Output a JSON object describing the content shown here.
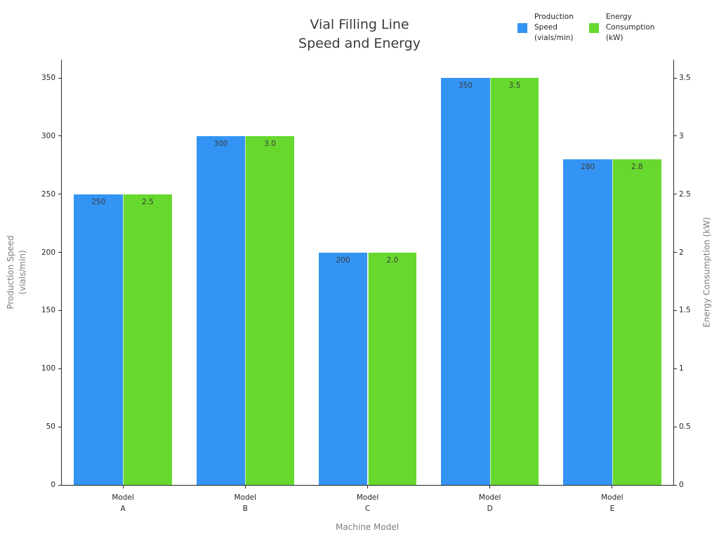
{
  "chart_data": {
    "type": "bar",
    "title": "Vial Filling Line\nSpeed and Energy",
    "xlabel": "Machine Model",
    "categories": [
      "Model\nA",
      "Model\nB",
      "Model\nC",
      "Model\nD",
      "Model\nE"
    ],
    "series": [
      {
        "name": "Production Speed (vials/min)",
        "legend_label": "Production\nSpeed\n(vials/min)",
        "axis": "left",
        "color": "#3494f4",
        "values": [
          250,
          300,
          200,
          350,
          280
        ],
        "value_labels": [
          "250",
          "300",
          "200",
          "350",
          "280"
        ]
      },
      {
        "name": "Energy Consumption (kW)",
        "legend_label": "Energy\nConsumption\n(kW)",
        "axis": "right",
        "color": "#67d82e",
        "values": [
          2.5,
          3.0,
          2.0,
          3.5,
          2.8
        ],
        "value_labels": [
          "2.5",
          "3.0",
          "2.0",
          "3.5",
          "2.8"
        ]
      }
    ],
    "left_axis": {
      "label": "Production Speed\n(vials/min)",
      "tick_values": [
        0,
        50,
        100,
        150,
        200,
        250,
        300,
        350
      ],
      "tick_labels": [
        "0",
        "50",
        "100",
        "150",
        "200",
        "250",
        "300",
        "350"
      ],
      "range": [
        0,
        365.7
      ]
    },
    "right_axis": {
      "label": "Energy Consumption (kW)",
      "tick_values": [
        0,
        0.5,
        1,
        1.5,
        2,
        2.5,
        3,
        3.5
      ],
      "tick_labels": [
        "0",
        "0.5",
        "1",
        "1.5",
        "2",
        "2.5",
        "3",
        "3.5"
      ],
      "range": [
        0,
        3.657
      ]
    },
    "grid": false,
    "legend_position": "top-right",
    "value_labels_inside_bars": true
  },
  "colors": {
    "production_speed_bar": "#3494f4",
    "energy_consumption_bar": "#67d82e",
    "title_text": "#3a3a3a",
    "tick_text": "#262626",
    "axis_label_text": "#7d7d7d",
    "spine": "#262626",
    "background": "#ffffff"
  }
}
